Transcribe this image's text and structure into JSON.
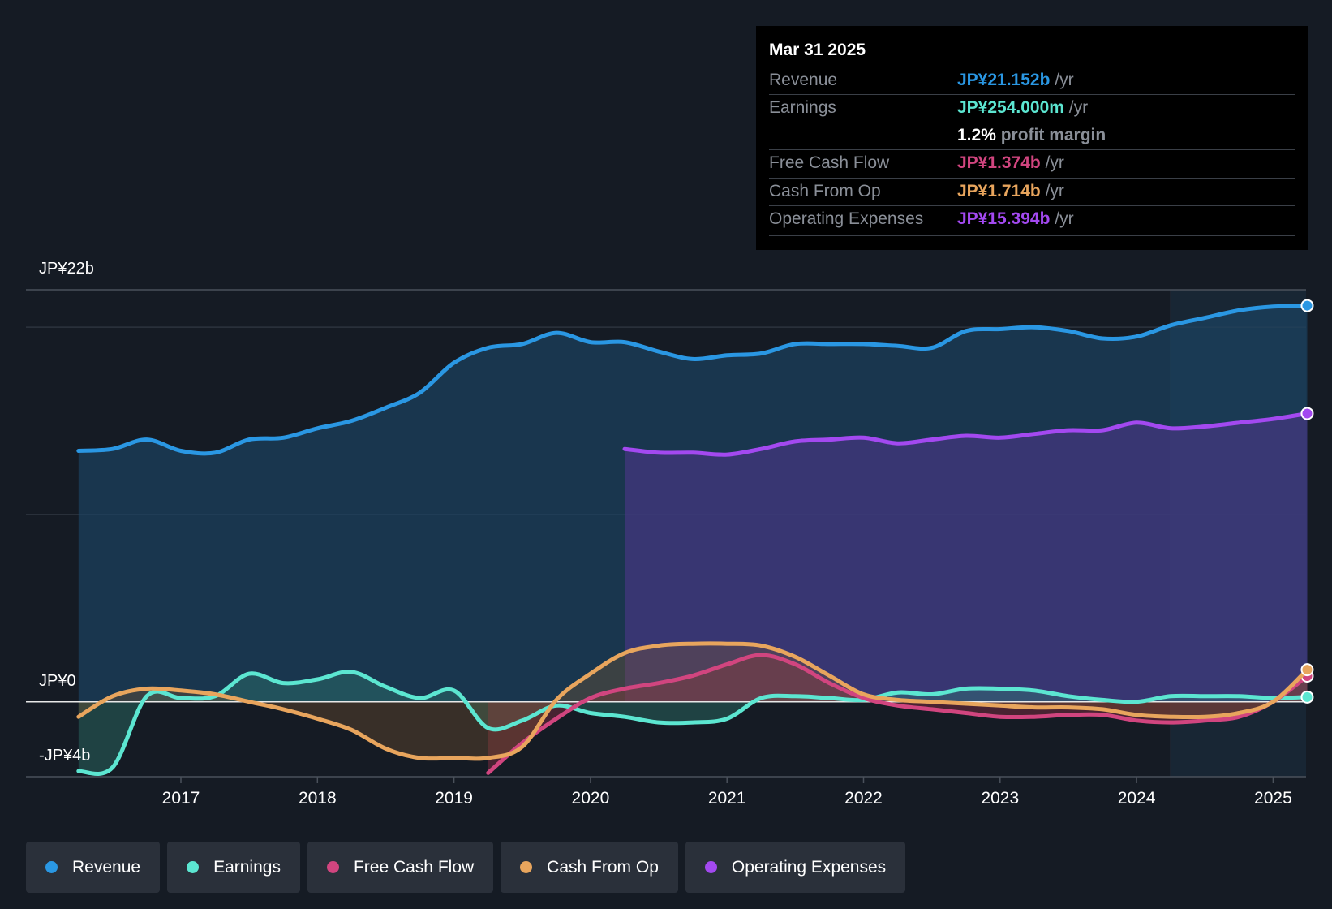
{
  "chart_data": {
    "type": "area",
    "title": "",
    "currency": "JP¥",
    "y_axis": {
      "top_label": "JP¥22b",
      "zero_label": "JP¥0",
      "bottom_label": "-JP¥4b",
      "ylim": [
        -4,
        22
      ]
    },
    "x_axis": {
      "ticks": [
        2017,
        2018,
        2019,
        2020,
        2021,
        2022,
        2023,
        2024,
        2025
      ],
      "xlim": [
        2016.25,
        2025.25
      ]
    },
    "highlight_region": [
      2024.25,
      2025.25
    ],
    "series": [
      {
        "name": "Revenue",
        "color": "#2a97e3",
        "fill": true,
        "points": [
          [
            2016.25,
            13.4
          ],
          [
            2016.5,
            13.5
          ],
          [
            2016.75,
            14.0
          ],
          [
            2017.0,
            13.4
          ],
          [
            2017.25,
            13.3
          ],
          [
            2017.5,
            14.0
          ],
          [
            2017.75,
            14.1
          ],
          [
            2018.0,
            14.6
          ],
          [
            2018.25,
            15.0
          ],
          [
            2018.5,
            15.7
          ],
          [
            2018.75,
            16.5
          ],
          [
            2019.0,
            18.1
          ],
          [
            2019.25,
            18.9
          ],
          [
            2019.5,
            19.1
          ],
          [
            2019.75,
            19.7
          ],
          [
            2020.0,
            19.2
          ],
          [
            2020.25,
            19.2
          ],
          [
            2020.5,
            18.7
          ],
          [
            2020.75,
            18.3
          ],
          [
            2021.0,
            18.5
          ],
          [
            2021.25,
            18.6
          ],
          [
            2021.5,
            19.1
          ],
          [
            2021.75,
            19.1
          ],
          [
            2022.0,
            19.1
          ],
          [
            2022.25,
            19.0
          ],
          [
            2022.5,
            18.9
          ],
          [
            2022.75,
            19.8
          ],
          [
            2023.0,
            19.9
          ],
          [
            2023.25,
            20.0
          ],
          [
            2023.5,
            19.8
          ],
          [
            2023.75,
            19.4
          ],
          [
            2024.0,
            19.5
          ],
          [
            2024.25,
            20.1
          ],
          [
            2024.5,
            20.5
          ],
          [
            2024.75,
            20.9
          ],
          [
            2025.0,
            21.1
          ],
          [
            2025.25,
            21.152
          ]
        ]
      },
      {
        "name": "Operating Expenses",
        "color": "#a349f0",
        "fill": true,
        "points": [
          [
            2020.25,
            13.5
          ],
          [
            2020.5,
            13.3
          ],
          [
            2020.75,
            13.3
          ],
          [
            2021.0,
            13.2
          ],
          [
            2021.25,
            13.5
          ],
          [
            2021.5,
            13.9
          ],
          [
            2021.75,
            14.0
          ],
          [
            2022.0,
            14.1
          ],
          [
            2022.25,
            13.8
          ],
          [
            2022.5,
            14.0
          ],
          [
            2022.75,
            14.2
          ],
          [
            2023.0,
            14.1
          ],
          [
            2023.25,
            14.3
          ],
          [
            2023.5,
            14.5
          ],
          [
            2023.75,
            14.5
          ],
          [
            2024.0,
            14.9
          ],
          [
            2024.25,
            14.6
          ],
          [
            2024.5,
            14.7
          ],
          [
            2024.75,
            14.9
          ],
          [
            2025.0,
            15.1
          ],
          [
            2025.25,
            15.394
          ]
        ]
      },
      {
        "name": "Earnings",
        "color": "#5ce6d1",
        "fill": true,
        "points": [
          [
            2016.25,
            -3.7
          ],
          [
            2016.5,
            -3.5
          ],
          [
            2016.75,
            0.3
          ],
          [
            2017.0,
            0.2
          ],
          [
            2017.25,
            0.3
          ],
          [
            2017.5,
            1.5
          ],
          [
            2017.75,
            1.0
          ],
          [
            2018.0,
            1.2
          ],
          [
            2018.25,
            1.6
          ],
          [
            2018.5,
            0.8
          ],
          [
            2018.75,
            0.2
          ],
          [
            2019.0,
            0.6
          ],
          [
            2019.25,
            -1.4
          ],
          [
            2019.5,
            -1.0
          ],
          [
            2019.75,
            -0.2
          ],
          [
            2020.0,
            -0.6
          ],
          [
            2020.25,
            -0.8
          ],
          [
            2020.5,
            -1.1
          ],
          [
            2020.75,
            -1.1
          ],
          [
            2021.0,
            -0.9
          ],
          [
            2021.25,
            0.2
          ],
          [
            2021.5,
            0.3
          ],
          [
            2021.75,
            0.2
          ],
          [
            2022.0,
            0.1
          ],
          [
            2022.25,
            0.5
          ],
          [
            2022.5,
            0.4
          ],
          [
            2022.75,
            0.7
          ],
          [
            2023.0,
            0.7
          ],
          [
            2023.25,
            0.6
          ],
          [
            2023.5,
            0.3
          ],
          [
            2023.75,
            0.1
          ],
          [
            2024.0,
            0.0
          ],
          [
            2024.25,
            0.3
          ],
          [
            2024.5,
            0.3
          ],
          [
            2024.75,
            0.3
          ],
          [
            2025.0,
            0.2
          ],
          [
            2025.25,
            0.254
          ]
        ]
      },
      {
        "name": "Free Cash Flow",
        "color": "#d1457f",
        "fill": true,
        "points": [
          [
            2019.25,
            -3.8
          ],
          [
            2019.5,
            -2.2
          ],
          [
            2019.75,
            -0.9
          ],
          [
            2020.0,
            0.2
          ],
          [
            2020.25,
            0.7
          ],
          [
            2020.5,
            1.0
          ],
          [
            2020.75,
            1.4
          ],
          [
            2021.0,
            2.0
          ],
          [
            2021.25,
            2.5
          ],
          [
            2021.5,
            2.0
          ],
          [
            2021.75,
            1.0
          ],
          [
            2022.0,
            0.2
          ],
          [
            2022.25,
            -0.2
          ],
          [
            2022.5,
            -0.4
          ],
          [
            2022.75,
            -0.6
          ],
          [
            2023.0,
            -0.8
          ],
          [
            2023.25,
            -0.8
          ],
          [
            2023.5,
            -0.7
          ],
          [
            2023.75,
            -0.7
          ],
          [
            2024.0,
            -1.0
          ],
          [
            2024.25,
            -1.1
          ],
          [
            2024.5,
            -1.0
          ],
          [
            2024.75,
            -0.8
          ],
          [
            2025.0,
            0.0
          ],
          [
            2025.25,
            1.374
          ]
        ]
      },
      {
        "name": "Cash From Op",
        "color": "#e8a55d",
        "fill": true,
        "points": [
          [
            2016.25,
            -0.8
          ],
          [
            2016.5,
            0.3
          ],
          [
            2016.75,
            0.7
          ],
          [
            2017.0,
            0.6
          ],
          [
            2017.25,
            0.4
          ],
          [
            2017.5,
            0.0
          ],
          [
            2017.75,
            -0.4
          ],
          [
            2018.0,
            -0.9
          ],
          [
            2018.25,
            -1.5
          ],
          [
            2018.5,
            -2.5
          ],
          [
            2018.75,
            -3.0
          ],
          [
            2019.0,
            -3.0
          ],
          [
            2019.25,
            -3.0
          ],
          [
            2019.5,
            -2.4
          ],
          [
            2019.75,
            0.1
          ],
          [
            2020.0,
            1.5
          ],
          [
            2020.25,
            2.6
          ],
          [
            2020.5,
            3.0
          ],
          [
            2020.75,
            3.1
          ],
          [
            2021.0,
            3.1
          ],
          [
            2021.25,
            3.0
          ],
          [
            2021.5,
            2.4
          ],
          [
            2021.75,
            1.4
          ],
          [
            2022.0,
            0.4
          ],
          [
            2022.25,
            0.1
          ],
          [
            2022.5,
            0.0
          ],
          [
            2022.75,
            -0.1
          ],
          [
            2023.0,
            -0.2
          ],
          [
            2023.25,
            -0.3
          ],
          [
            2023.5,
            -0.3
          ],
          [
            2023.75,
            -0.4
          ],
          [
            2024.0,
            -0.7
          ],
          [
            2024.25,
            -0.8
          ],
          [
            2024.5,
            -0.8
          ],
          [
            2024.75,
            -0.6
          ],
          [
            2025.0,
            0.0
          ],
          [
            2025.25,
            1.714
          ]
        ]
      }
    ]
  },
  "tooltip": {
    "date": "Mar 31 2025",
    "rows": [
      {
        "label": "Revenue",
        "value": "JP¥21.152b",
        "suffix": " /yr",
        "color": "#2a97e3"
      },
      {
        "label": "Earnings",
        "value": "JP¥254.000m",
        "suffix": " /yr",
        "color": "#5ce6d1"
      },
      {
        "label": "Free Cash Flow",
        "value": "JP¥1.374b",
        "suffix": " /yr",
        "color": "#d1457f"
      },
      {
        "label": "Cash From Op",
        "value": "JP¥1.714b",
        "suffix": " /yr",
        "color": "#e8a55d"
      },
      {
        "label": "Operating Expenses",
        "value": "JP¥15.394b",
        "suffix": " /yr",
        "color": "#a349f0"
      }
    ],
    "margin_value": "1.2%",
    "margin_label": "profit margin"
  },
  "legend": [
    {
      "label": "Revenue",
      "color": "#2a97e3"
    },
    {
      "label": "Earnings",
      "color": "#5ce6d1"
    },
    {
      "label": "Free Cash Flow",
      "color": "#d1457f"
    },
    {
      "label": "Cash From Op",
      "color": "#e8a55d"
    },
    {
      "label": "Operating Expenses",
      "color": "#a349f0"
    }
  ]
}
